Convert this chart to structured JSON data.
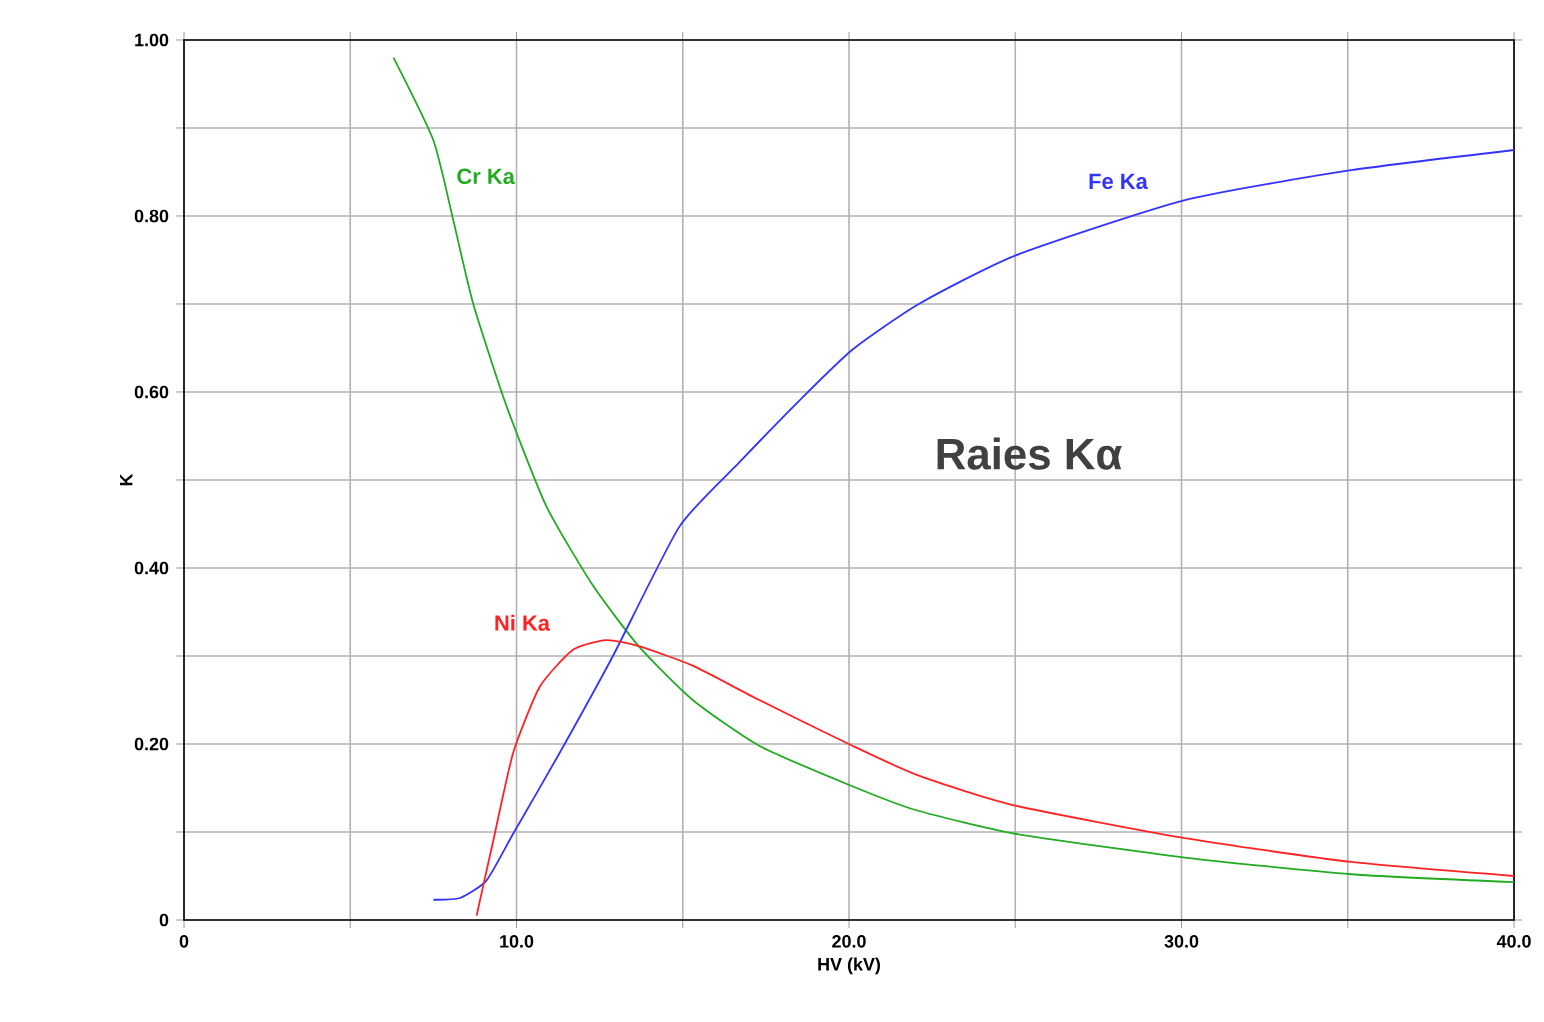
{
  "chart_data": {
    "type": "line",
    "xlabel": "HV (kV)",
    "ylabel": "K",
    "xlim": [
      0,
      40
    ],
    "ylim": [
      0,
      1
    ],
    "xticks": [
      {
        "value": 0,
        "label": "0"
      },
      {
        "value": 5,
        "label": null
      },
      {
        "value": 10,
        "label": "10.0"
      },
      {
        "value": 15,
        "label": null
      },
      {
        "value": 20,
        "label": "20.0"
      },
      {
        "value": 25,
        "label": null
      },
      {
        "value": 30,
        "label": "30.0"
      },
      {
        "value": 35,
        "label": null
      },
      {
        "value": 40,
        "label": "40.0"
      }
    ],
    "yticks": [
      {
        "value": 0,
        "label": "0"
      },
      {
        "value": 0.1,
        "label": null
      },
      {
        "value": 0.2,
        "label": "0.20"
      },
      {
        "value": 0.3,
        "label": null
      },
      {
        "value": 0.4,
        "label": "0.40"
      },
      {
        "value": 0.5,
        "label": null
      },
      {
        "value": 0.6,
        "label": "0.60"
      },
      {
        "value": 0.7,
        "label": null
      },
      {
        "value": 0.8,
        "label": "0.80"
      },
      {
        "value": 0.9,
        "label": null
      },
      {
        "value": 1,
        "label": "1.00"
      }
    ],
    "grid": true,
    "marker": "none",
    "line_style": "solid",
    "series": [
      {
        "name": "Cr Ka",
        "color": "#22aa22",
        "x": [
          6.3,
          7.5,
          8.1,
          8.7,
          9.7,
          10.9,
          12.3,
          13.7,
          15.3,
          17.3,
          20.1,
          22.0,
          25.0,
          30.1,
          35.1,
          40
        ],
        "values": [
          0.98,
          0.886,
          0.795,
          0.7,
          0.584,
          0.47,
          0.38,
          0.31,
          0.25,
          0.198,
          0.152,
          0.125,
          0.098,
          0.071,
          0.052,
          0.043
        ]
      },
      {
        "name": "Fe Ka",
        "color": "#3333ff",
        "x": [
          7.5,
          8.3,
          9.1,
          9.9,
          11.3,
          12.9,
          14.9,
          16.7,
          18.5,
          20.1,
          22.1,
          25,
          30.1,
          35.1,
          40
        ],
        "values": [
          0.023,
          0.025,
          0.045,
          0.098,
          0.19,
          0.3,
          0.447,
          0.52,
          0.59,
          0.648,
          0.7,
          0.755,
          0.818,
          0.852,
          0.875
        ]
      },
      {
        "name": "Ni Ka",
        "color": "#ff2222",
        "x": [
          8.8,
          9.3,
          9.9,
          10.7,
          11.7,
          12.7,
          13.7,
          15.3,
          17.3,
          20.1,
          22.1,
          25,
          30.1,
          35.1,
          40
        ],
        "values": [
          0.005,
          0.09,
          0.19,
          0.265,
          0.307,
          0.318,
          0.311,
          0.289,
          0.25,
          0.198,
          0.164,
          0.13,
          0.093,
          0.066,
          0.05
        ]
      }
    ],
    "annotations": [
      "Raies Kα"
    ]
  }
}
